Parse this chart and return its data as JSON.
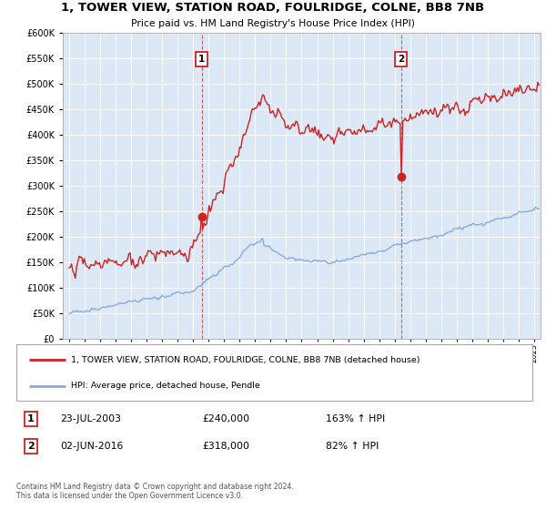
{
  "title": "1, TOWER VIEW, STATION ROAD, FOULRIDGE, COLNE, BB8 7NB",
  "subtitle": "Price paid vs. HM Land Registry's House Price Index (HPI)",
  "legend_line1": "1, TOWER VIEW, STATION ROAD, FOULRIDGE, COLNE, BB8 7NB (detached house)",
  "legend_line2": "HPI: Average price, detached house, Pendle",
  "sale1_date_str": "23-JUL-2003",
  "sale1_price_str": "£240,000",
  "sale1_hpi_str": "163% ↑ HPI",
  "sale2_date_str": "02-JUN-2016",
  "sale2_price_str": "£318,000",
  "sale2_hpi_str": "82% ↑ HPI",
  "footnote": "Contains HM Land Registry data © Crown copyright and database right 2024.\nThis data is licensed under the Open Government Licence v3.0.",
  "ylim": [
    0,
    600000
  ],
  "yticks": [
    0,
    50000,
    100000,
    150000,
    200000,
    250000,
    300000,
    350000,
    400000,
    450000,
    500000,
    550000,
    600000
  ],
  "red_color": "#cc2222",
  "blue_color": "#88aadd",
  "bg_color": "#dce8f5",
  "sale1_x": 2003.55,
  "sale1_y": 240000,
  "sale2_x": 2016.42,
  "sale2_y": 318000,
  "xmin": 1994.6,
  "xmax": 2025.4,
  "xtick_start": 1995,
  "xtick_end": 2025
}
